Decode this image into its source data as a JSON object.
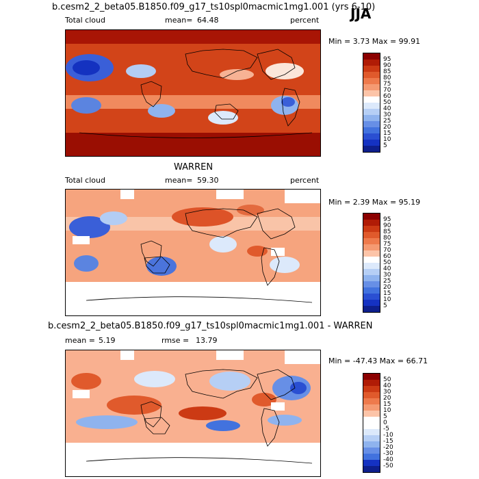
{
  "season": "JJA",
  "panels": [
    {
      "title": "b.cesm2_2_beta05.B1850.f09_g17_ts10spl0macmic1mg1.001 (yrs 6-10)",
      "variable": "Total cloud",
      "mean_label": "mean=",
      "mean": "64.48",
      "units": "percent",
      "minmax": "Min =    3.73 Max =   99.91"
    },
    {
      "title": "WARREN",
      "variable": "Total cloud",
      "mean_label": "mean=",
      "mean": "59.30",
      "units": "percent",
      "minmax": "Min =    2.39 Max =   95.19"
    },
    {
      "title": "b.cesm2_2_beta05.B1850.f09_g17_ts10spl0macmic1mg1.001 - WARREN",
      "mean_label": "mean =",
      "mean": "5.19",
      "rmse_label": "rmse =",
      "rmse": "13.79",
      "minmax": "Min = -47.43 Max =   66.71"
    }
  ],
  "colorbars": {
    "abs_levels": [
      "95",
      "90",
      "85",
      "80",
      "75",
      "70",
      "60",
      "50",
      "40",
      "30",
      "25",
      "20",
      "15",
      "10",
      "5"
    ],
    "abs_colors": [
      "#8b0000",
      "#b01c06",
      "#cc3a14",
      "#e05a2c",
      "#ee7a4c",
      "#f59a72",
      "#fcc4a8",
      "#ffffff",
      "#dce9fb",
      "#b6cff5",
      "#8fb3ee",
      "#678fe6",
      "#4272de",
      "#2a4fd2",
      "#1532c2",
      "#0e1f8c"
    ],
    "diff_levels": [
      "50",
      "40",
      "30",
      "20",
      "15",
      "10",
      "5",
      "0",
      "-5",
      "-10",
      "-15",
      "-20",
      "-30",
      "-40",
      "-50"
    ],
    "diff_colors": [
      "#8b0000",
      "#b01c06",
      "#cc3a14",
      "#e05a2c",
      "#ee7a4c",
      "#f59a72",
      "#fcc4a8",
      "#ffffff",
      "#ffffff",
      "#dce9fb",
      "#b6cff5",
      "#8fb3ee",
      "#678fe6",
      "#4272de",
      "#1532c2",
      "#0e1f8c"
    ]
  }
}
